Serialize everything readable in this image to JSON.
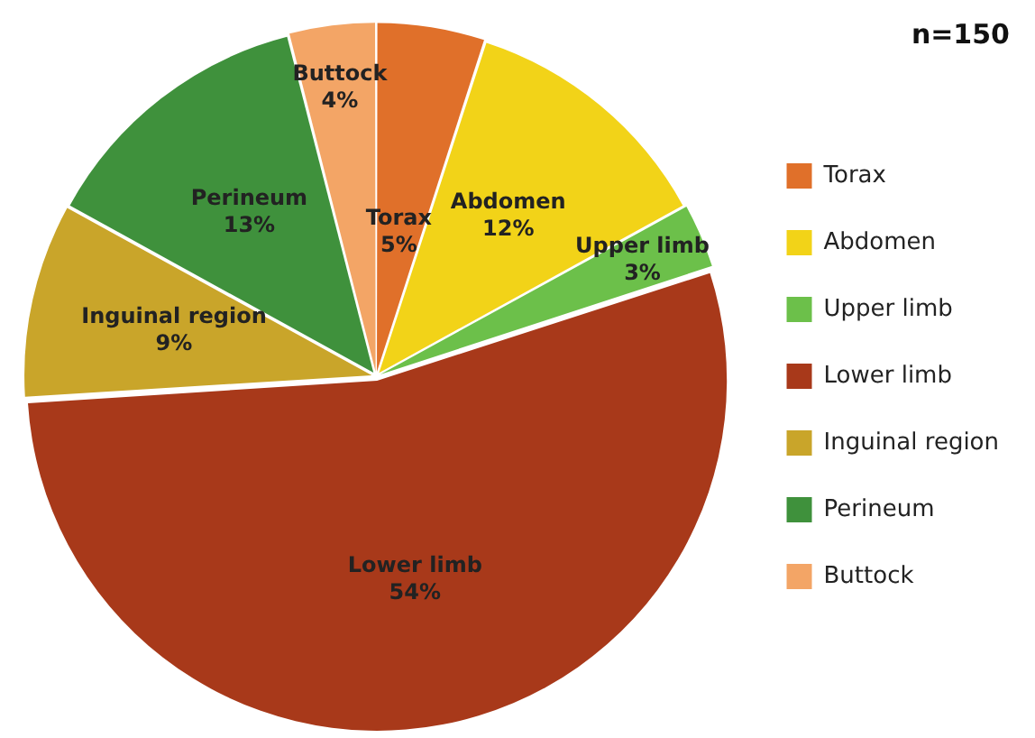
{
  "chart_data": {
    "type": "pie",
    "categories": [
      "Torax",
      "Abdomen",
      "Upper limb",
      "Lower limb",
      "Inguinal region",
      "Perineum",
      "Buttock"
    ],
    "values": [
      5,
      12,
      3,
      54,
      9,
      13,
      4
    ],
    "value_labels": [
      "5%",
      "12%",
      "3%",
      "54%",
      "9%",
      "13%",
      "4%"
    ],
    "colors": [
      "#e0702a",
      "#f2d318",
      "#6cc04a",
      "#a8391a",
      "#c9a52a",
      "#3f913c",
      "#f3a566"
    ],
    "legend": "right",
    "annotations": [
      "n=150"
    ]
  }
}
